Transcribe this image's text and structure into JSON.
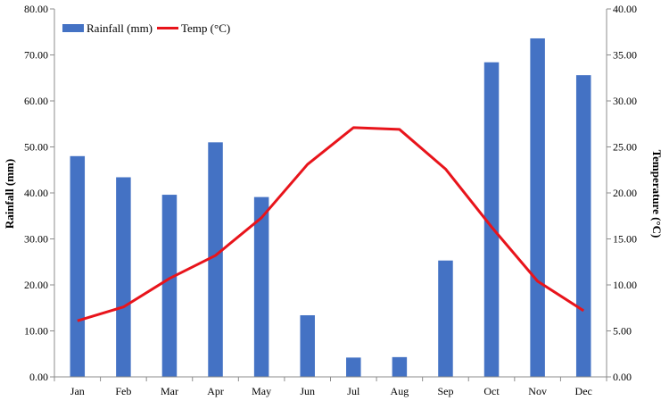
{
  "chart_data": {
    "type": "bar",
    "categories": [
      "Jan",
      "Feb",
      "Mar",
      "Apr",
      "May",
      "Jun",
      "Jul",
      "Aug",
      "Sep",
      "Oct",
      "Nov",
      "Dec"
    ],
    "series": [
      {
        "name": "Rainfall (mm)",
        "type": "bar",
        "axis": "left",
        "color": "#4472C4",
        "values": [
          48.0,
          43.4,
          39.6,
          51.0,
          39.1,
          13.4,
          4.2,
          4.3,
          25.3,
          68.4,
          73.6,
          65.6
        ]
      },
      {
        "name": "Temp (°C)",
        "type": "line",
        "axis": "right",
        "color": "#E8141B",
        "values": [
          6.1,
          7.6,
          10.7,
          13.2,
          17.3,
          23.1,
          27.1,
          26.9,
          22.6,
          16.3,
          10.4,
          7.2
        ]
      }
    ],
    "ylabel": "Rainfall (mm)",
    "y2label": "Temperature (°C)",
    "ylim": [
      0,
      80
    ],
    "y2lim": [
      0,
      40
    ],
    "yticks": [
      "0.00",
      "10.00",
      "20.00",
      "30.00",
      "40.00",
      "50.00",
      "60.00",
      "70.00",
      "80.00"
    ],
    "y2ticks": [
      "0.00",
      "5.00",
      "10.00",
      "15.00",
      "20.00",
      "25.00",
      "30.00",
      "35.00",
      "40.00"
    ],
    "legend_position": "top-left",
    "grid": false
  }
}
